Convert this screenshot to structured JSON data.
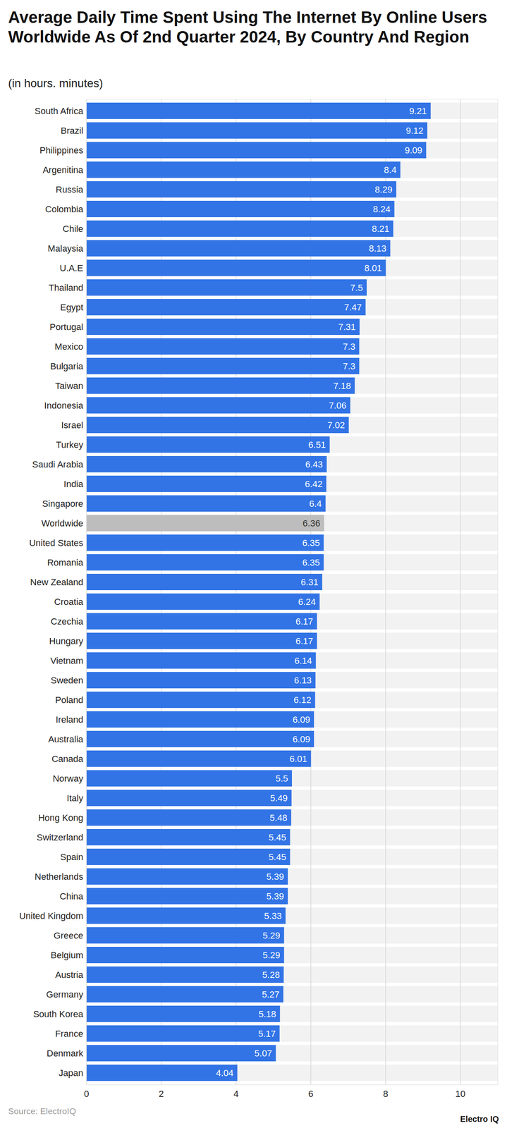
{
  "chart_data": {
    "type": "bar",
    "orientation": "horizontal",
    "title": "Average Daily Time Spent Using The Internet By Online Users Worldwide As Of 2nd Quarter 2024, By Country And Region",
    "subtitle": "(in hours. minutes)",
    "source": "Source: ElectroIQ",
    "credit": "Electro IQ",
    "categories": [
      "South Africa",
      "Brazil",
      "Philippines",
      "Argenitina",
      "Russia",
      "Colombia",
      "Chile",
      "Malaysia",
      "U.A.E",
      "Thailand",
      "Egypt",
      "Portugal",
      "Mexico",
      "Bulgaria",
      "Taiwan",
      "Indonesia",
      "Israel",
      "Turkey",
      "Saudi Arabia",
      "India",
      "Singapore",
      "Worldwide",
      "United States",
      "Romania",
      "New Zealand",
      "Croatia",
      "Czechia",
      "Hungary",
      "Vietnam",
      "Sweden",
      "Poland",
      "Ireland",
      "Australia",
      "Canada",
      "Norway",
      "Italy",
      "Hong Kong",
      "Switzerland",
      "Spain",
      "Netherlands",
      "China",
      "United Kingdom",
      "Greece",
      "Belgium",
      "Austria",
      "Germany",
      "South Korea",
      "France",
      "Denmark",
      "Japan"
    ],
    "values": [
      9.21,
      9.12,
      9.09,
      8.4,
      8.29,
      8.24,
      8.21,
      8.13,
      8.01,
      7.5,
      7.47,
      7.31,
      7.3,
      7.3,
      7.18,
      7.06,
      7.02,
      6.51,
      6.43,
      6.42,
      6.4,
      6.36,
      6.35,
      6.35,
      6.31,
      6.24,
      6.17,
      6.17,
      6.14,
      6.13,
      6.12,
      6.09,
      6.09,
      6.01,
      5.5,
      5.49,
      5.48,
      5.45,
      5.45,
      5.39,
      5.39,
      5.33,
      5.29,
      5.29,
      5.28,
      5.27,
      5.18,
      5.17,
      5.07,
      4.04
    ],
    "colors": [
      "#3274e6",
      "#3274e6",
      "#3274e6",
      "#3274e6",
      "#3274e6",
      "#3274e6",
      "#3274e6",
      "#3274e6",
      "#3274e6",
      "#3274e6",
      "#3274e6",
      "#3274e6",
      "#3274e6",
      "#3274e6",
      "#3274e6",
      "#3274e6",
      "#3274e6",
      "#3274e6",
      "#3274e6",
      "#3274e6",
      "#3274e6",
      "#bdbdbd",
      "#3274e6",
      "#3274e6",
      "#3274e6",
      "#3274e6",
      "#3274e6",
      "#3274e6",
      "#3274e6",
      "#3274e6",
      "#3274e6",
      "#3274e6",
      "#3274e6",
      "#3274e6",
      "#3274e6",
      "#3274e6",
      "#3274e6",
      "#3274e6",
      "#3274e6",
      "#3274e6",
      "#3274e6",
      "#3274e6",
      "#3274e6",
      "#3274e6",
      "#3274e6",
      "#3274e6",
      "#3274e6",
      "#3274e6",
      "#3274e6",
      "#3274e6"
    ],
    "xlim": [
      0,
      11
    ],
    "xticks": [
      0,
      2,
      4,
      6,
      8,
      10
    ],
    "grid": true,
    "data_labels": true
  }
}
